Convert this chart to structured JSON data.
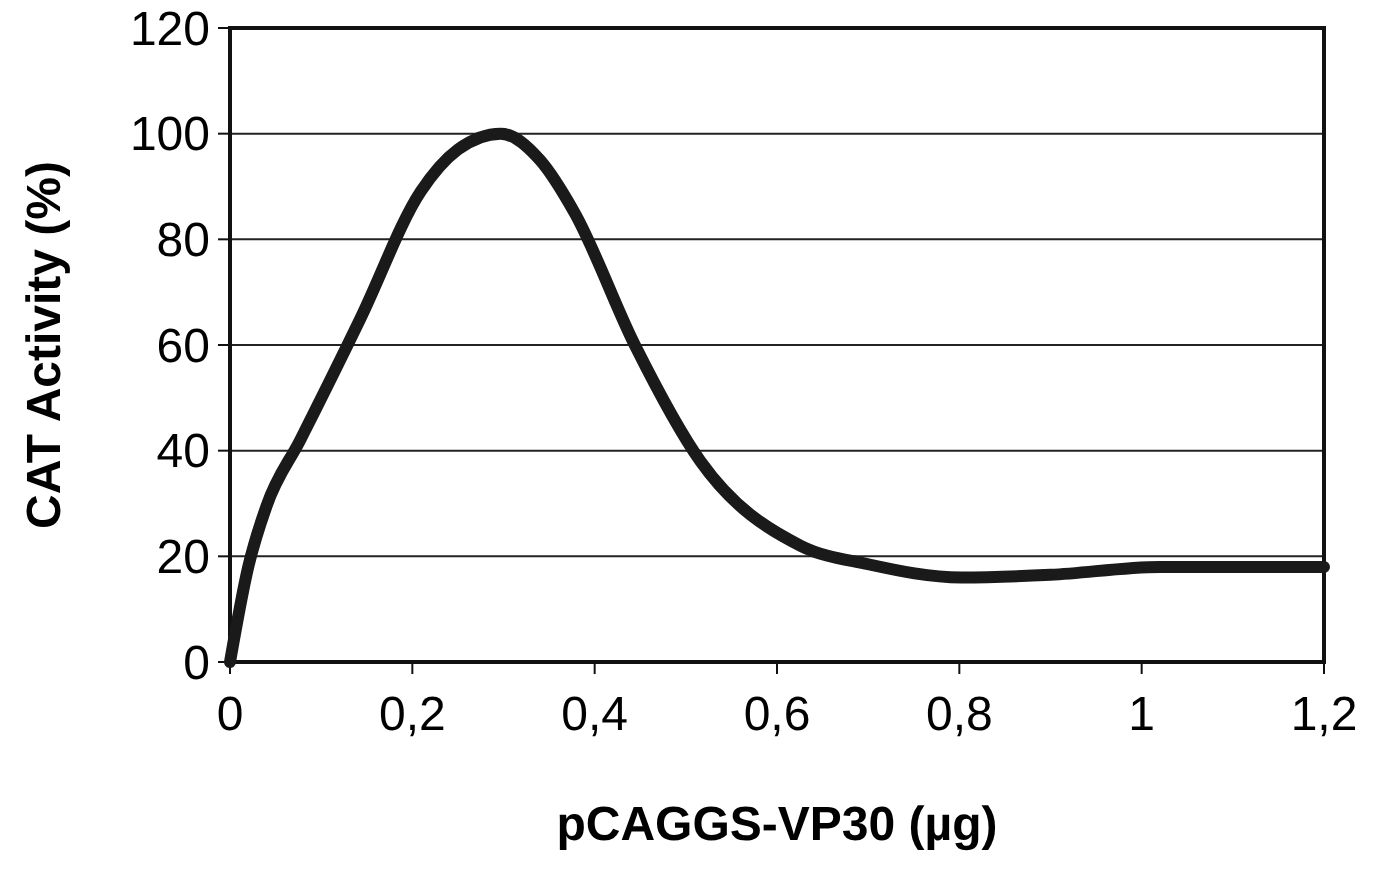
{
  "chart_data": {
    "type": "line",
    "xlabel": "pCAGGS-VP30 (µg)",
    "ylabel": "CAT Activity (%)",
    "x": [
      0,
      0.02,
      0.04,
      0.077,
      0.143,
      0.209,
      0.25,
      0.297,
      0.34,
      0.378,
      0.444,
      0.516,
      0.626,
      0.7,
      0.802,
      0.9,
      1.02,
      1.1,
      1.2
    ],
    "series": [
      {
        "color": "#1a1a1a",
        "values": [
          0,
          18,
          29.5,
          42,
          65,
          89,
          97,
          100,
          95,
          85,
          60,
          38,
          22,
          18.5,
          16,
          16.5,
          18,
          18,
          18
        ]
      }
    ],
    "xlim": [
      0,
      1.2
    ],
    "xticks": [
      {
        "value": 0,
        "label": "0"
      },
      {
        "value": 0.2,
        "label": "0,2"
      },
      {
        "value": 0.4,
        "label": "0,4"
      },
      {
        "value": 0.6,
        "label": "0,6"
      },
      {
        "value": 0.8,
        "label": "0,8"
      },
      {
        "value": 1,
        "label": "1"
      },
      {
        "value": 1.2,
        "label": "1,2"
      }
    ],
    "ylim": [
      0,
      120
    ],
    "yticks": [
      0,
      20,
      40,
      60,
      80,
      100,
      120
    ],
    "grid": "y",
    "marker": "none",
    "line_style": "solid"
  }
}
